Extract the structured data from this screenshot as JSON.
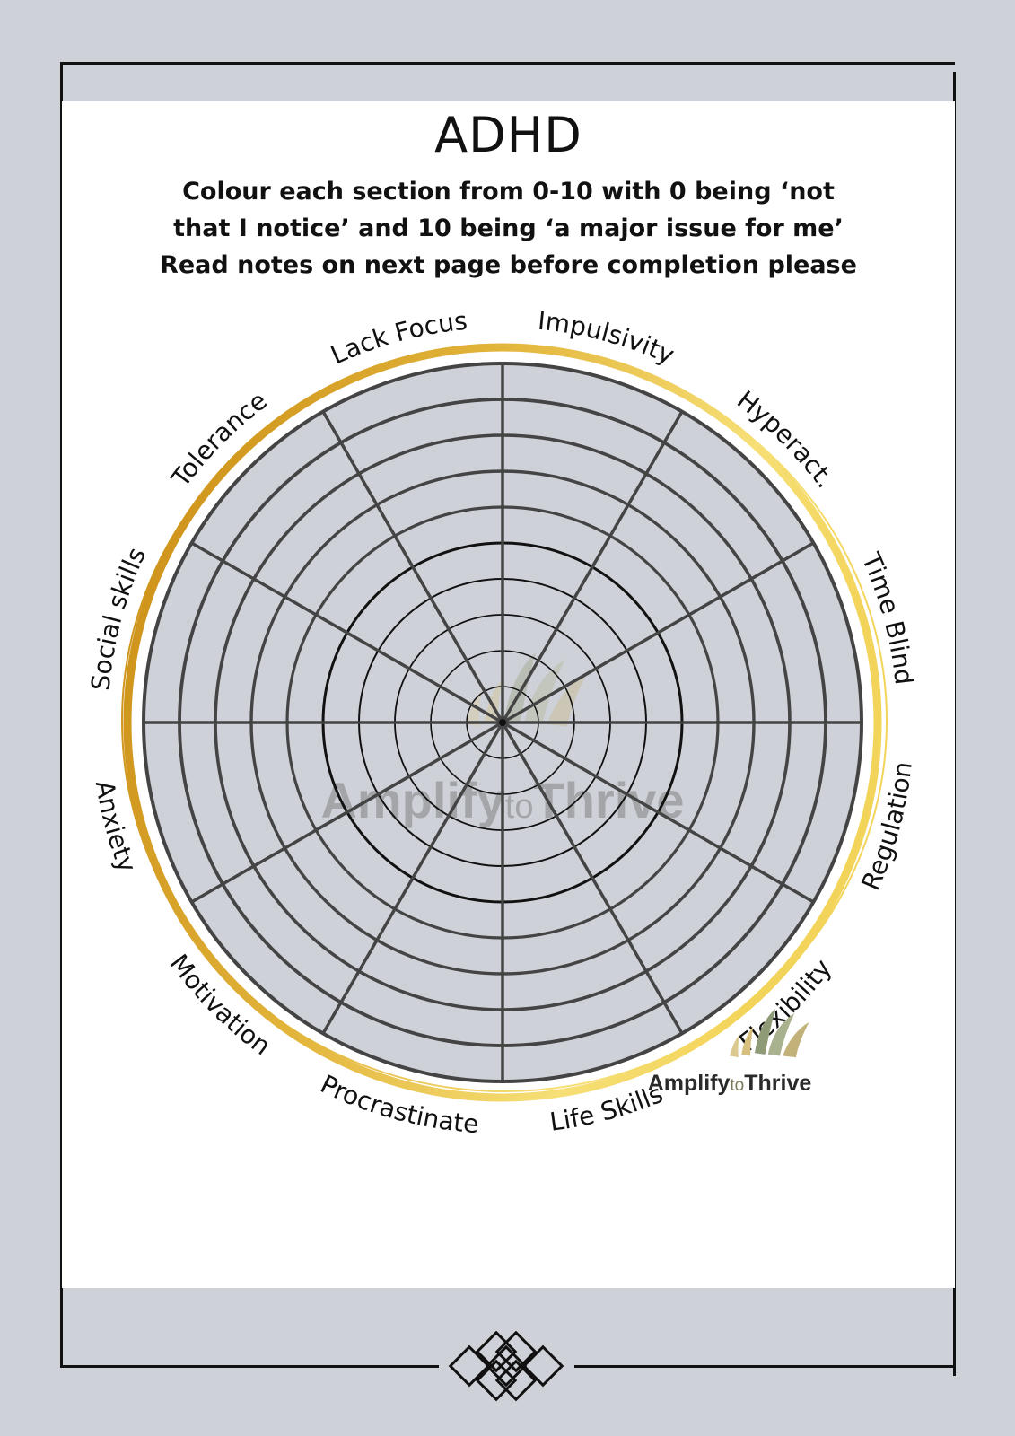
{
  "title": "ADHD",
  "instructions": [
    "Colour each section from 0-10 with 0 being ‘not",
    "that I notice’ and 10 being ‘a major issue for me’",
    "Read notes on next page before completion please"
  ],
  "wheel": {
    "scale_min": 0,
    "scale_max": 10,
    "segments": [
      "Impulsivity",
      "Hyperact.",
      "Time Blind",
      "Regulation",
      "Flexibility",
      "Life Skills",
      "Procrastinate",
      "Motivation",
      "Anxiety",
      "Social skills",
      "Tolerance",
      "Lack Focus"
    ],
    "watermark": [
      "Amplify",
      "to",
      "Thrive"
    ]
  },
  "logo": {
    "word1": "Amplify",
    "word2": "to",
    "word3": "Thrive"
  },
  "colors": {
    "background": "#cfd1d8",
    "wheel_fill": "#cfd1d8",
    "gold_dark": "#d09a1e",
    "gold_light": "#f3da66",
    "lines": "#444444"
  }
}
